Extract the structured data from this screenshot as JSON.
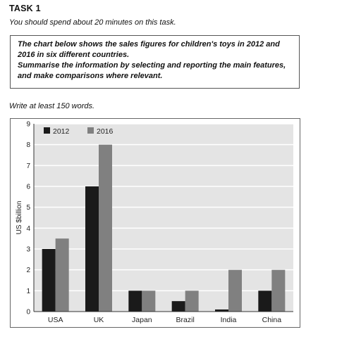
{
  "task": {
    "title": "TASK 1",
    "instruction": "You should spend about 20 minutes on this task.",
    "prompt_line1": "The chart below shows the sales figures for children's toys in 2012 and 2016 in six different countries.",
    "prompt_line2": "Summarise the information by selecting and reporting the main features, and make comparisons where relevant.",
    "word_count": "Write at least 150 words."
  },
  "colors": {
    "series_2012": "#1a1a1a",
    "series_2016": "#808080",
    "plot_bg": "#e4e4e4",
    "grid": "#ffffff"
  },
  "chart_data": {
    "type": "bar",
    "categories": [
      "USA",
      "UK",
      "Japan",
      "Brazil",
      "India",
      "China"
    ],
    "series": [
      {
        "name": "2012",
        "values": [
          3,
          6,
          1,
          0.5,
          0.1,
          1
        ]
      },
      {
        "name": "2016",
        "values": [
          3.5,
          8,
          1,
          1,
          2,
          2
        ]
      }
    ],
    "ylabel": "US $billion",
    "xlabel": "",
    "ylim": [
      0,
      9
    ],
    "yticks": [
      0,
      1,
      2,
      3,
      4,
      5,
      6,
      7,
      8,
      9
    ],
    "grid": true,
    "legend": "top-left"
  }
}
